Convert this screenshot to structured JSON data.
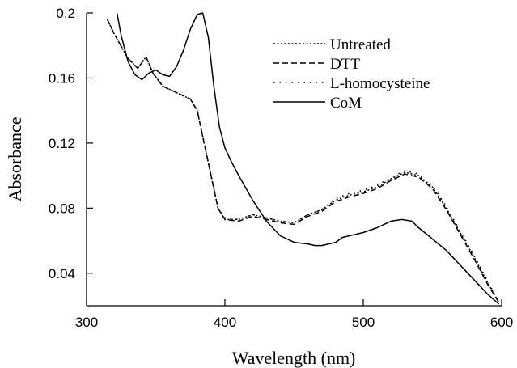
{
  "chart_data": {
    "type": "line",
    "title": "",
    "xlabel": "Wavelength (nm)",
    "ylabel": "Absorbance",
    "xlim": [
      300,
      600
    ],
    "ylim": [
      0.02,
      0.2
    ],
    "x_ticks": [
      300,
      400,
      500,
      600
    ],
    "x_tick_labels": [
      "300",
      "400",
      "500",
      "600"
    ],
    "y_ticks": [
      0.04,
      0.08,
      0.12,
      0.16,
      0.2
    ],
    "y_tick_labels": [
      "0.04",
      "0.08",
      "0.12",
      "0.16",
      "0.2"
    ],
    "grid": false,
    "legend_position": "top-right",
    "series": [
      {
        "name": "Untreated",
        "style": "dotted",
        "color": "#000000",
        "x": [
          315,
          320,
          330,
          337,
          343,
          348,
          355,
          365,
          375,
          380,
          385,
          390,
          395,
          400,
          410,
          420,
          430,
          440,
          450,
          460,
          470,
          480,
          490,
          500,
          510,
          520,
          530,
          540,
          550,
          560,
          570,
          580,
          590,
          598
        ],
        "y": [
          0.196,
          0.187,
          0.172,
          0.166,
          0.173,
          0.163,
          0.155,
          0.151,
          0.147,
          0.14,
          0.12,
          0.1,
          0.08,
          0.073,
          0.073,
          0.076,
          0.074,
          0.072,
          0.071,
          0.076,
          0.079,
          0.085,
          0.088,
          0.09,
          0.093,
          0.098,
          0.102,
          0.1,
          0.093,
          0.08,
          0.065,
          0.05,
          0.034,
          0.022
        ]
      },
      {
        "name": "DTT",
        "style": "dashed",
        "color": "#000000",
        "x": [
          315,
          320,
          330,
          337,
          343,
          348,
          355,
          365,
          375,
          380,
          385,
          390,
          395,
          400,
          410,
          420,
          430,
          440,
          450,
          460,
          470,
          480,
          490,
          500,
          510,
          520,
          530,
          540,
          550,
          560,
          570,
          580,
          590,
          598
        ],
        "y": [
          0.196,
          0.187,
          0.172,
          0.166,
          0.173,
          0.163,
          0.155,
          0.151,
          0.147,
          0.14,
          0.12,
          0.1,
          0.08,
          0.073,
          0.072,
          0.075,
          0.073,
          0.071,
          0.07,
          0.075,
          0.078,
          0.084,
          0.087,
          0.089,
          0.092,
          0.097,
          0.101,
          0.099,
          0.092,
          0.079,
          0.064,
          0.049,
          0.033,
          0.022
        ]
      },
      {
        "name": "L-homocysteine",
        "style": "sparse-dotted",
        "color": "#000000",
        "x": [
          315,
          320,
          330,
          337,
          343,
          348,
          355,
          365,
          375,
          380,
          385,
          390,
          395,
          400,
          410,
          420,
          430,
          440,
          450,
          460,
          470,
          480,
          490,
          500,
          510,
          520,
          530,
          540,
          550,
          560,
          570,
          580,
          590,
          598
        ],
        "y": [
          0.196,
          0.187,
          0.172,
          0.166,
          0.173,
          0.163,
          0.155,
          0.151,
          0.147,
          0.14,
          0.12,
          0.1,
          0.08,
          0.074,
          0.073,
          0.076,
          0.074,
          0.072,
          0.071,
          0.076,
          0.079,
          0.086,
          0.089,
          0.091,
          0.094,
          0.099,
          0.103,
          0.101,
          0.094,
          0.081,
          0.066,
          0.051,
          0.035,
          0.022
        ]
      },
      {
        "name": "CoM",
        "style": "solid",
        "color": "#000000",
        "x": [
          322,
          325,
          330,
          335,
          340,
          345,
          350,
          355,
          360,
          365,
          370,
          375,
          380,
          384,
          388,
          392,
          396,
          400,
          405,
          410,
          420,
          430,
          440,
          450,
          460,
          465,
          470,
          480,
          485,
          490,
          500,
          510,
          520,
          528,
          535,
          540,
          550,
          560,
          570,
          580,
          590,
          598
        ],
        "y": [
          0.2,
          0.186,
          0.17,
          0.162,
          0.159,
          0.163,
          0.165,
          0.162,
          0.161,
          0.167,
          0.177,
          0.19,
          0.199,
          0.2,
          0.185,
          0.155,
          0.13,
          0.117,
          0.108,
          0.1,
          0.085,
          0.072,
          0.063,
          0.059,
          0.058,
          0.057,
          0.057,
          0.059,
          0.062,
          0.063,
          0.065,
          0.068,
          0.072,
          0.073,
          0.072,
          0.068,
          0.061,
          0.054,
          0.045,
          0.036,
          0.027,
          0.021
        ]
      }
    ]
  }
}
